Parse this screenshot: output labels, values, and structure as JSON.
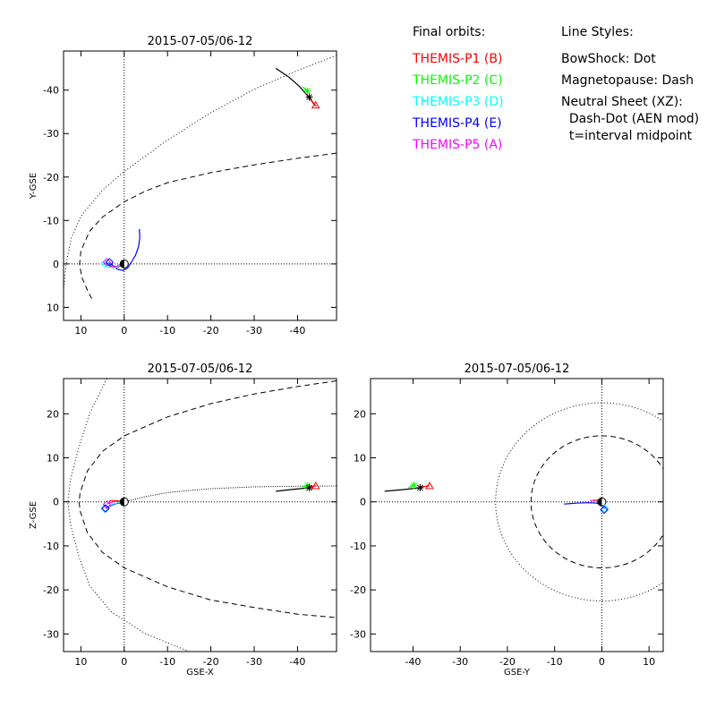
{
  "legend": {
    "orbits_title": "Final orbits:",
    "probes": [
      {
        "label": "THEMIS-P1 (B)",
        "color": "#ff0000"
      },
      {
        "label": "THEMIS-P2 (C)",
        "color": "#00ff00"
      },
      {
        "label": "THEMIS-P3 (D)",
        "color": "#00ffff"
      },
      {
        "label": "THEMIS-P4 (E)",
        "color": "#0000ff"
      },
      {
        "label": "THEMIS-P5 (A)",
        "color": "#ff00ff"
      }
    ],
    "styles_title": "Line Styles:",
    "styles": [
      "BowShock: Dot",
      "Magnetopause: Dash",
      "Neutral Sheet (XZ):",
      "  Dash-Dot (AEN mod)",
      "  t=interval midpoint"
    ]
  },
  "chart_data": [
    {
      "type": "line",
      "id": "xy",
      "title": "2015-07-05/06-12",
      "xlabel": "",
      "ylabel": "Y-GSE",
      "xlim": [
        14,
        -49
      ],
      "ylim": [
        13,
        -49
      ],
      "xticks": [
        10,
        0,
        -10,
        -20,
        -30,
        -40
      ],
      "yticks": [
        10,
        0,
        -10,
        -20,
        -30,
        -40
      ],
      "grid": "dotted axes at 0",
      "bowshock": [
        [
          -49,
          -48
        ],
        [
          -40,
          -44.5
        ],
        [
          -30,
          -40.2
        ],
        [
          -20,
          -34.8
        ],
        [
          -10,
          -28.5
        ],
        [
          0,
          -21.3
        ],
        [
          5,
          -17
        ],
        [
          10,
          -11
        ],
        [
          12.2,
          -6
        ],
        [
          13.4,
          0
        ],
        [
          14,
          6
        ]
      ],
      "magnetopause": [
        [
          -49,
          -25.5
        ],
        [
          -40,
          -24.3
        ],
        [
          -30,
          -22.8
        ],
        [
          -20,
          -21
        ],
        [
          -10,
          -18.7
        ],
        [
          -5,
          -16.8
        ],
        [
          0,
          -14.3
        ],
        [
          5,
          -10.8
        ],
        [
          8,
          -7.5
        ],
        [
          10,
          -3
        ],
        [
          10.3,
          0
        ],
        [
          9.8,
          3
        ],
        [
          8.5,
          6
        ],
        [
          7.5,
          8
        ]
      ],
      "near_earth": [
        {
          "color": "#0000ff",
          "points": [
            [
              -3.5,
              -8
            ],
            [
              -3.6,
              -6
            ],
            [
              -3.3,
              -4
            ],
            [
              -2.6,
              -2
            ],
            [
              -1.7,
              -0.5
            ],
            [
              -0.8,
              0.9
            ],
            [
              0.3,
              1.5
            ],
            [
              1.6,
              1.2
            ],
            [
              2.8,
              0.2
            ],
            [
              3.8,
              -0.3
            ]
          ]
        },
        {
          "color": "#ff00ff",
          "points": [
            [
              0.4,
              -0.2
            ],
            [
              1.6,
              0.5
            ],
            [
              2.8,
              0.6
            ],
            [
              3.8,
              0.2
            ],
            [
              4.3,
              -0.3
            ]
          ]
        },
        {
          "color": "#ff0000",
          "points": [
            [
              0.3,
              -0.1
            ],
            [
              1.3,
              0.7
            ],
            [
              2.6,
              0.9
            ],
            [
              3.5,
              0.3
            ]
          ]
        },
        {
          "color": "#00ffff",
          "points": [
            [
              0.6,
              0.1
            ],
            [
              2.0,
              0.9
            ],
            [
              3.6,
              0.7
            ],
            [
              4.5,
              -0.1
            ]
          ]
        }
      ],
      "far_segments": [
        {
          "color": "#000000",
          "points": [
            [
              -35,
              -45
            ],
            [
              -38,
              -43
            ],
            [
              -40.5,
              -40.8
            ],
            [
              -42.5,
              -38.5
            ],
            [
              -44,
              -36.5
            ]
          ]
        },
        {
          "color": "#ff0000",
          "points": [
            [
              -42,
              -39.2
            ],
            [
              -43.2,
              -37.6
            ],
            [
              -44.4,
              -36.2
            ]
          ]
        },
        {
          "color": "#00ff00",
          "points": [
            [
              -41.2,
              -40.8
            ],
            [
              -42.3,
              -39.6
            ]
          ]
        }
      ],
      "markers": [
        {
          "shape": "triangle",
          "color": "#ff0000",
          "x": -44.2,
          "y": -36.5
        },
        {
          "shape": "asterisk",
          "color": "#00ff00",
          "x": -42.3,
          "y": -39.8
        },
        {
          "shape": "asterisk",
          "color": "#000000",
          "x": -42.7,
          "y": -38.4
        },
        {
          "shape": "diamond",
          "color": "#00ffff",
          "x": 4.4,
          "y": -0.1
        },
        {
          "shape": "diamond",
          "color": "#ff00ff",
          "x": 4.0,
          "y": -0.4
        },
        {
          "shape": "diamond",
          "color": "#0000ff",
          "x": 3.4,
          "y": -0.4
        }
      ],
      "earth": {
        "x": 0,
        "y": 0
      }
    },
    {
      "type": "line",
      "id": "xz",
      "title": "2015-07-05/06-12",
      "xlabel": "GSE-X",
      "ylabel": "Z-GSE",
      "xlim": [
        14,
        -49
      ],
      "ylim": [
        -34,
        28
      ],
      "xticks": [
        10,
        0,
        -10,
        -20,
        -30,
        -40
      ],
      "yticks": [
        -30,
        -20,
        -10,
        0,
        10,
        20
      ],
      "grid": "dotted axes at 0",
      "bowshock": [
        [
          4,
          28
        ],
        [
          8,
          20
        ],
        [
          10.6,
          12
        ],
        [
          12.4,
          5
        ],
        [
          13,
          0
        ],
        [
          12.4,
          -5
        ],
        [
          10.6,
          -12
        ],
        [
          8,
          -19
        ],
        [
          3,
          -25
        ],
        [
          -5,
          -30
        ],
        [
          -15,
          -34
        ]
      ],
      "magnetopause": [
        [
          -49,
          27.5
        ],
        [
          -40,
          26.2
        ],
        [
          -30,
          24.5
        ],
        [
          -20,
          22.3
        ],
        [
          -10,
          19.3
        ],
        [
          0,
          15
        ],
        [
          5,
          11.5
        ],
        [
          8.5,
          7
        ],
        [
          10.2,
          2
        ],
        [
          10.4,
          0
        ],
        [
          10.2,
          -2
        ],
        [
          8.5,
          -7
        ],
        [
          5,
          -11.5
        ],
        [
          0,
          -15
        ],
        [
          -10,
          -19.3
        ],
        [
          -20,
          -22.3
        ],
        [
          -30,
          -24
        ],
        [
          -40,
          -25.5
        ],
        [
          -49,
          -26.3
        ]
      ],
      "neutral_sheet": [
        [
          0,
          0
        ],
        [
          -5,
          1.2
        ],
        [
          -10,
          2.1
        ],
        [
          -15,
          2.6
        ],
        [
          -20,
          3
        ],
        [
          -25,
          3.2
        ],
        [
          -30,
          3.4
        ],
        [
          -35,
          3.5
        ],
        [
          -40,
          3.55
        ],
        [
          -49,
          3.6
        ]
      ],
      "near_earth": [
        {
          "color": "#0000ff",
          "points": [
            [
              0.8,
              -0.2
            ],
            [
              2.2,
              -0.5
            ],
            [
              3.4,
              -1.0
            ],
            [
              4.3,
              -1.5
            ]
          ]
        },
        {
          "color": "#ff00ff",
          "points": [
            [
              0.5,
              0.2
            ],
            [
              2.0,
              0.1
            ],
            [
              3.2,
              -0.2
            ],
            [
              4.0,
              -0.5
            ]
          ]
        },
        {
          "color": "#ff0000",
          "points": [
            [
              0.3,
              0.1
            ],
            [
              1.8,
              0.3
            ],
            [
              3.4,
              0.3
            ]
          ]
        },
        {
          "color": "#00ffff",
          "points": [
            [
              0.6,
              0
            ],
            [
              2.6,
              -0.5
            ],
            [
              4.4,
              -1.4
            ]
          ]
        }
      ],
      "far_segments": [
        {
          "color": "#000000",
          "points": [
            [
              -35,
              2.4
            ],
            [
              -38.5,
              2.8
            ],
            [
              -42.7,
              3.2
            ]
          ]
        },
        {
          "color": "#00ff00",
          "points": [
            [
              -41,
              3.4
            ],
            [
              -42.3,
              3.7
            ]
          ]
        },
        {
          "color": "#ff0000",
          "points": [
            [
              -42.7,
              3.4
            ],
            [
              -44.2,
              3.6
            ]
          ]
        }
      ],
      "markers": [
        {
          "shape": "triangle",
          "color": "#ff0000",
          "x": -44.2,
          "y": 3.6
        },
        {
          "shape": "asterisk",
          "color": "#00ff00",
          "x": -42.3,
          "y": 3.7
        },
        {
          "shape": "asterisk",
          "color": "#000000",
          "x": -42.7,
          "y": 3.2
        },
        {
          "shape": "diamond",
          "color": "#00ffff",
          "x": 4.5,
          "y": -1.5
        },
        {
          "shape": "diamond",
          "color": "#ff00ff",
          "x": 4.0,
          "y": -0.6
        },
        {
          "shape": "diamond",
          "color": "#0000ff",
          "x": 4.3,
          "y": -1.5
        }
      ],
      "earth": {
        "x": 0,
        "y": 0
      }
    },
    {
      "type": "line",
      "id": "yz",
      "title": "2015-07-05/06-12",
      "xlabel": "GSE-Y",
      "ylabel": "",
      "xlim": [
        -49,
        13
      ],
      "ylim": [
        -34,
        28
      ],
      "xticks": [
        -40,
        -30,
        -20,
        -10,
        0,
        10
      ],
      "yticks": [
        -30,
        -20,
        -10,
        0,
        10,
        20
      ],
      "grid": "dotted axes at 0",
      "bowshock_circle": {
        "cx": 0,
        "cy": 0,
        "r": 22.5
      },
      "magnetopause_circle": {
        "cx": 0,
        "cy": 0,
        "r": 15
      },
      "near_earth": [
        {
          "color": "#0000ff",
          "points": [
            [
              -8,
              -0.5
            ],
            [
              -5.5,
              -0.3
            ],
            [
              -3,
              -0.2
            ],
            [
              -1,
              -0.3
            ],
            [
              0.4,
              -1.2
            ],
            [
              0.6,
              -1.6
            ]
          ]
        },
        {
          "color": "#ff00ff",
          "points": [
            [
              -2.5,
              0.3
            ],
            [
              -1,
              0.4
            ],
            [
              0.3,
              0
            ]
          ]
        },
        {
          "color": "#ff0000",
          "points": [
            [
              -1.8,
              0.4
            ],
            [
              -0.3,
              0.3
            ]
          ]
        },
        {
          "color": "#00ffff",
          "points": [
            [
              -1.5,
              0.1
            ],
            [
              0,
              0
            ],
            [
              0.6,
              -1.5
            ]
          ]
        }
      ],
      "far_segments": [
        {
          "color": "#000000",
          "points": [
            [
              -46,
              2.4
            ],
            [
              -42,
              2.8
            ],
            [
              -38.5,
              3.2
            ]
          ]
        },
        {
          "color": "#00ff00",
          "points": [
            [
              -41,
              3.2
            ],
            [
              -39.8,
              3.8
            ]
          ]
        },
        {
          "color": "#ff0000",
          "points": [
            [
              -38.5,
              3.4
            ],
            [
              -36.5,
              3.6
            ]
          ]
        }
      ],
      "markers": [
        {
          "shape": "triangle",
          "color": "#ff0000",
          "x": -36.5,
          "y": 3.6
        },
        {
          "shape": "asterisk",
          "color": "#00ff00",
          "x": -39.8,
          "y": 3.8
        },
        {
          "shape": "asterisk",
          "color": "#000000",
          "x": -38.5,
          "y": 3.2
        },
        {
          "shape": "diamond",
          "color": "#00ffff",
          "x": 0.6,
          "y": -1.5
        },
        {
          "shape": "diamond",
          "color": "#0000ff",
          "x": 0.5,
          "y": -1.8
        }
      ],
      "earth": {
        "x": 0,
        "y": 0
      }
    }
  ]
}
